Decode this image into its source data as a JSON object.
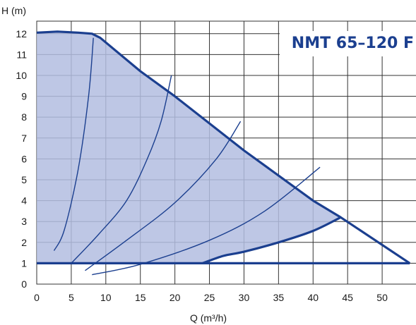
{
  "chart_data": {
    "type": "line",
    "title": "NMT 65–120 F",
    "xlabel": "Q (m³/h)",
    "ylabel": "H (m)",
    "xlim": [
      0,
      55
    ],
    "ylim": [
      0,
      12.6
    ],
    "x_ticks": [
      "0",
      "5",
      "10",
      "15",
      "20",
      "25",
      "30",
      "35",
      "40",
      "45",
      "50"
    ],
    "y_ticks": [
      "0",
      "1",
      "2",
      "3",
      "4",
      "5",
      "6",
      "7",
      "8",
      "9",
      "10",
      "11",
      "12"
    ],
    "grid": true,
    "colors": {
      "accent": "#1b3f8f",
      "region_fill": "#b3bde0",
      "grid": "#333333",
      "title": "#1b3f8f"
    },
    "series": [
      {
        "role": "operating-region",
        "points": [
          [
            0,
            12.05
          ],
          [
            3,
            12.1
          ],
          [
            6,
            12.05
          ],
          [
            8,
            12.0
          ],
          [
            9.2,
            11.8
          ],
          [
            15,
            10.2
          ],
          [
            20,
            9.0
          ],
          [
            30,
            6.4
          ],
          [
            40,
            4.0
          ],
          [
            44,
            3.2
          ],
          [
            40,
            2.55
          ],
          [
            35,
            2.0
          ],
          [
            30,
            1.55
          ],
          [
            27,
            1.35
          ],
          [
            24,
            1.0
          ],
          [
            0,
            1.0
          ]
        ]
      },
      {
        "role": "max-curve",
        "points": [
          [
            0,
            12.05
          ],
          [
            3,
            12.1
          ],
          [
            6,
            12.05
          ],
          [
            8,
            12.0
          ],
          [
            9.2,
            11.8
          ],
          [
            15,
            10.2
          ],
          [
            20,
            9.0
          ],
          [
            30,
            6.4
          ],
          [
            40,
            4.0
          ],
          [
            44,
            3.2
          ],
          [
            54,
            1.0
          ]
        ]
      },
      {
        "role": "min-curve",
        "points": [
          [
            24,
            1.0
          ],
          [
            27,
            1.35
          ],
          [
            30,
            1.55
          ],
          [
            35,
            2.0
          ],
          [
            40,
            2.55
          ],
          [
            44,
            3.2
          ]
        ]
      },
      {
        "role": "base-line",
        "points": [
          [
            0,
            1.0
          ],
          [
            54,
            1.0
          ]
        ]
      },
      {
        "role": "system-curve",
        "points": [
          [
            2.5,
            1.6
          ],
          [
            4,
            2.6
          ],
          [
            6,
            5.5
          ],
          [
            7.5,
            9.0
          ],
          [
            8.2,
            11.8
          ]
        ]
      },
      {
        "role": "system-curve",
        "points": [
          [
            5,
            1.0
          ],
          [
            9,
            2.4
          ],
          [
            13,
            4.0
          ],
          [
            16,
            6.0
          ],
          [
            18,
            7.8
          ],
          [
            19.5,
            10.0
          ]
        ]
      },
      {
        "role": "system-curve",
        "points": [
          [
            7,
            0.65
          ],
          [
            13,
            2.1
          ],
          [
            20,
            3.9
          ],
          [
            26,
            6.0
          ],
          [
            29.5,
            7.8
          ]
        ]
      },
      {
        "role": "system-curve",
        "points": [
          [
            8,
            0.45
          ],
          [
            15,
            0.95
          ],
          [
            25,
            2.1
          ],
          [
            33,
            3.5
          ],
          [
            41,
            5.6
          ]
        ]
      }
    ]
  }
}
